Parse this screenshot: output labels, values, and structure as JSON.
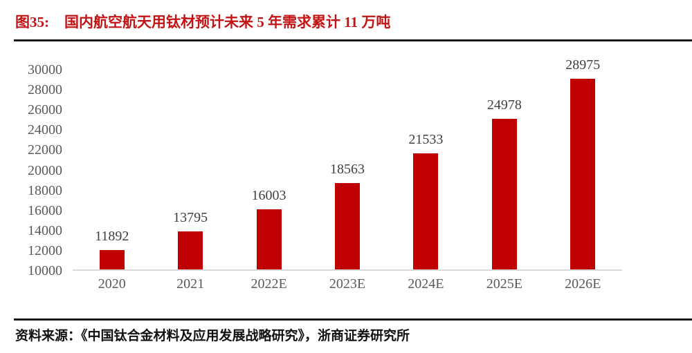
{
  "figure": {
    "label": "图35:",
    "title": "国内航空航天用钛材预计未来 5 年需求累计 11 万吨"
  },
  "source": "资料来源：《中国钛合金材料及应用发展战略研究》，浙商证券研究所",
  "colors": {
    "bar": "#C00000",
    "title": "#C21414",
    "axis_text": "#595959",
    "data_label": "#3F3F3F",
    "axis_line": "#D9D9D9",
    "rule": "#1A1A1A"
  },
  "chart_data": {
    "type": "bar",
    "title": "国内航空航天用钛材预计未来 5 年需求累计 11 万吨",
    "categories": [
      "2020",
      "2021",
      "2022E",
      "2023E",
      "2024E",
      "2025E",
      "2026E"
    ],
    "values": [
      11892,
      13795,
      16003,
      18563,
      21533,
      24978,
      28975
    ],
    "data_labels": [
      "11892",
      "13795",
      "16003",
      "18563",
      "21533",
      "24978",
      "28975"
    ],
    "xlabel": "",
    "ylabel": "",
    "ylim": [
      10000,
      30000
    ],
    "ytick_step": 2000,
    "yticks": [
      10000,
      12000,
      14000,
      16000,
      18000,
      20000,
      22000,
      24000,
      26000,
      28000,
      30000
    ],
    "grid": false,
    "legend": false,
    "bar_color": "#C00000"
  }
}
